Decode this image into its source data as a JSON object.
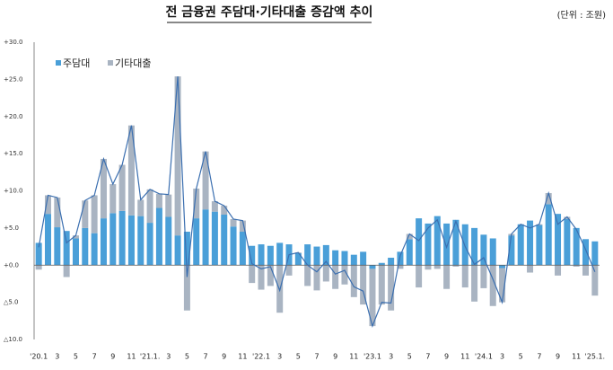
{
  "chart_data": {
    "type": "bar",
    "stacked": true,
    "title": "전 금융권 주담대·기타대출 증감액 추이",
    "unit": "(단위 : 조원)",
    "categories": [
      "'20.1",
      null,
      "3",
      null,
      "5",
      null,
      "7",
      null,
      "9",
      null,
      "11",
      null,
      "'21.1.",
      null,
      "3",
      null,
      "5",
      null,
      "7",
      null,
      "9",
      null,
      "11",
      null,
      "'22.1",
      null,
      "3",
      null,
      "5",
      null,
      "7",
      null,
      "9",
      null,
      "11",
      null,
      "'23.1",
      null,
      "3",
      null,
      "5",
      null,
      "7",
      null,
      "9",
      null,
      "11",
      null,
      "'24.1",
      null,
      "3",
      null,
      "5",
      null,
      "7",
      null,
      "9",
      null,
      "11",
      null,
      "'25.1."
    ],
    "series": [
      {
        "name": "주담대",
        "color": "#4a9fd8",
        "values": [
          3.0,
          6.9,
          5.1,
          4.6,
          3.6,
          5.0,
          4.3,
          6.3,
          7.0,
          7.3,
          6.7,
          6.6,
          5.7,
          7.7,
          6.5,
          4.0,
          4.5,
          6.3,
          7.5,
          7.2,
          6.8,
          5.2,
          4.5,
          2.6,
          2.8,
          2.6,
          3.0,
          2.8,
          1.6,
          2.8,
          2.5,
          2.7,
          2.0,
          1.9,
          1.4,
          1.8,
          -0.5,
          0.3,
          1.0,
          1.8,
          3.5,
          6.3,
          5.6,
          6.6,
          5.6,
          6.1,
          5.5,
          5.0,
          4.1,
          3.6,
          -0.4,
          4.0,
          5.5,
          6.0,
          5.4,
          8.2,
          6.9,
          6.2,
          5.0,
          3.5,
          3.2
        ]
      },
      {
        "name": "기타대출",
        "color": "#a9b4c2",
        "values": [
          -0.6,
          2.5,
          4.0,
          -1.6,
          0.4,
          3.7,
          5.1,
          8.0,
          3.9,
          6.2,
          12.1,
          2.2,
          4.5,
          1.9,
          3.0,
          21.4,
          -6.1,
          4.0,
          7.8,
          1.4,
          1.2,
          1.0,
          1.5,
          -2.4,
          -3.3,
          -2.8,
          -6.4,
          -1.4,
          0.1,
          -2.8,
          -3.4,
          -2.2,
          -3.2,
          -2.6,
          -4.3,
          -5.3,
          -7.7,
          -5.3,
          -6.1,
          -0.5,
          0.7,
          -3.0,
          -0.6,
          -0.5,
          -3.2,
          -0.2,
          -3.0,
          -4.9,
          -3.1,
          -5.5,
          -4.6,
          0.2,
          0.0,
          -1.0,
          0.1,
          1.5,
          -1.4,
          0.3,
          -0.2,
          -1.4,
          -4.1
        ]
      }
    ],
    "line": {
      "color": "#3b6fb0",
      "values": [
        2.4,
        9.4,
        9.1,
        3.0,
        4.0,
        8.7,
        9.4,
        14.3,
        10.9,
        13.5,
        18.8,
        8.8,
        10.2,
        9.6,
        9.5,
        25.4,
        -1.6,
        10.3,
        15.3,
        8.6,
        8.0,
        6.2,
        6.0,
        0.2,
        -0.5,
        -0.2,
        -3.4,
        1.4,
        1.7,
        0.0,
        -0.9,
        0.5,
        -1.2,
        -0.7,
        -2.9,
        -3.5,
        -8.2,
        -5.0,
        -5.1,
        1.3,
        4.2,
        3.3,
        5.0,
        6.1,
        2.4,
        5.9,
        2.5,
        0.1,
        1.0,
        -1.9,
        -5.0,
        4.2,
        5.5,
        5.0,
        5.5,
        9.7,
        5.5,
        6.5,
        4.8,
        2.1,
        -0.9
      ]
    },
    "ylim": [
      -10,
      30
    ],
    "yticks": [
      {
        "value": -10,
        "label": "△10.0"
      },
      {
        "value": -5,
        "label": "△5.0"
      },
      {
        "value": 0,
        "label": "+0.0"
      },
      {
        "value": 5,
        "label": "+5.0"
      },
      {
        "value": 10,
        "label": "+10.0"
      },
      {
        "value": 15,
        "label": "+15.0"
      },
      {
        "value": 20,
        "label": "+20.0"
      },
      {
        "value": 25,
        "label": "+25.0"
      },
      {
        "value": 30,
        "label": "+30.0"
      }
    ],
    "negative_tick_color": "#e03030"
  }
}
